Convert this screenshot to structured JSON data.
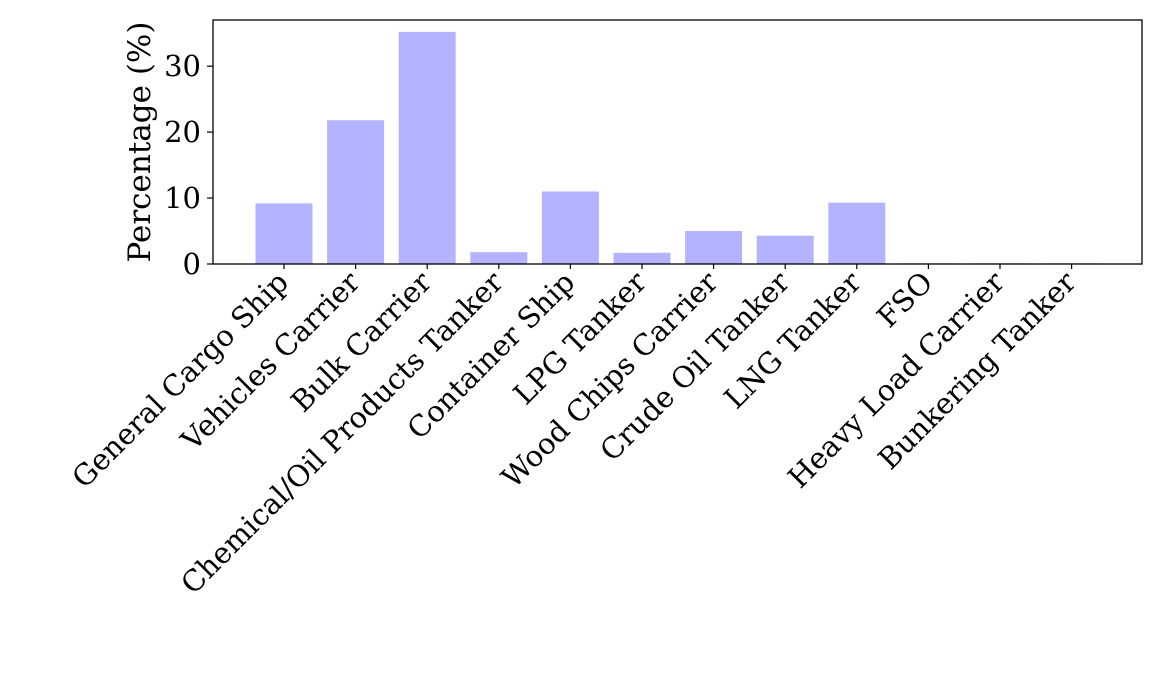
{
  "chart_data": {
    "type": "bar",
    "title": "",
    "xlabel": "",
    "ylabel": "Percentage (%)",
    "categories": [
      "General Cargo Ship",
      "Vehicles Carrier",
      "Bulk Carrier",
      "Chemical/Oil Products Tanker",
      "Container Ship",
      "LPG Tanker",
      "Wood Chips Carrier",
      "Crude Oil Tanker",
      "LNG Tanker",
      "FSO",
      "Heavy Load Carrier",
      "Bunkering Tanker"
    ],
    "values": [
      9.2,
      21.8,
      35.2,
      1.8,
      11.0,
      1.7,
      5.0,
      4.3,
      9.3,
      0.1,
      0.1,
      0.1
    ],
    "ylim": [
      0,
      37
    ],
    "yticks": [
      0,
      10,
      20,
      30
    ],
    "grid": false,
    "bar_color": "#b3b3ff"
  }
}
